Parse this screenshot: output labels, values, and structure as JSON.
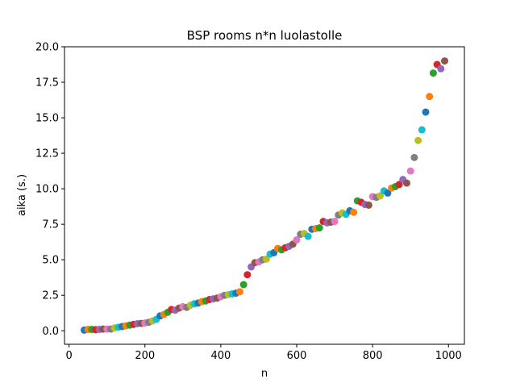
{
  "chart_data": {
    "type": "scatter",
    "title": "BSP rooms n*n luolastolle",
    "xlabel": "n",
    "ylabel": "aika (s.)",
    "xlim": [
      -12,
      1042
    ],
    "ylim": [
      -0.95,
      20.0
    ],
    "xticks": [
      0,
      200,
      400,
      600,
      800,
      1000
    ],
    "xtick_labels": [
      "0",
      "200",
      "400",
      "600",
      "800",
      "1000"
    ],
    "yticks": [
      0.0,
      2.5,
      5.0,
      7.5,
      10.0,
      12.5,
      15.0,
      17.5,
      20.0
    ],
    "ytick_labels": [
      "0.0",
      "2.5",
      "5.0",
      "7.5",
      "10.0",
      "12.5",
      "15.0",
      "17.5",
      "20.0"
    ],
    "grid": false,
    "colors": [
      "#1f77b4",
      "#ff7f0e",
      "#2ca02c",
      "#d62728",
      "#9467bd",
      "#8c564b",
      "#e377c2",
      "#7f7f7f",
      "#bcbd22",
      "#17becf"
    ],
    "x": [
      40,
      50,
      60,
      70,
      80,
      90,
      100,
      110,
      120,
      130,
      140,
      150,
      160,
      170,
      180,
      190,
      200,
      210,
      220,
      230,
      240,
      250,
      260,
      270,
      280,
      290,
      300,
      310,
      320,
      330,
      340,
      350,
      360,
      370,
      380,
      390,
      400,
      410,
      420,
      430,
      440,
      450,
      460,
      470,
      480,
      490,
      500,
      510,
      520,
      530,
      540,
      550,
      560,
      570,
      580,
      590,
      600,
      610,
      620,
      630,
      640,
      650,
      660,
      670,
      680,
      690,
      700,
      710,
      720,
      730,
      740,
      750,
      760,
      770,
      780,
      790,
      800,
      810,
      820,
      830,
      840,
      850,
      860,
      870,
      880,
      890,
      900,
      910,
      920,
      930,
      940,
      950,
      960,
      970,
      980,
      990
    ],
    "y": [
      0.05,
      0.1,
      0.1,
      0.08,
      0.1,
      0.12,
      0.12,
      0.12,
      0.2,
      0.25,
      0.3,
      0.35,
      0.4,
      0.45,
      0.5,
      0.52,
      0.55,
      0.6,
      0.7,
      0.8,
      1.05,
      1.15,
      1.3,
      1.5,
      1.45,
      1.6,
      1.7,
      1.65,
      1.8,
      1.9,
      1.95,
      2.05,
      2.1,
      2.2,
      2.25,
      2.3,
      2.4,
      2.5,
      2.55,
      2.6,
      2.65,
      2.75,
      3.25,
      3.95,
      4.5,
      4.8,
      4.85,
      5.0,
      5.05,
      5.4,
      5.5,
      5.8,
      5.7,
      5.85,
      5.95,
      6.1,
      6.4,
      6.8,
      6.85,
      6.65,
      7.15,
      7.2,
      7.25,
      7.7,
      7.6,
      7.65,
      7.7,
      8.15,
      8.3,
      8.2,
      8.45,
      8.35,
      9.15,
      9.05,
      8.9,
      8.85,
      9.45,
      9.4,
      9.5,
      9.85,
      9.7,
      10.05,
      10.15,
      10.3,
      10.65,
      10.4,
      11.25,
      12.2,
      13.4,
      14.15,
      15.4,
      16.5,
      18.15,
      18.75,
      18.45,
      19.0
    ]
  }
}
